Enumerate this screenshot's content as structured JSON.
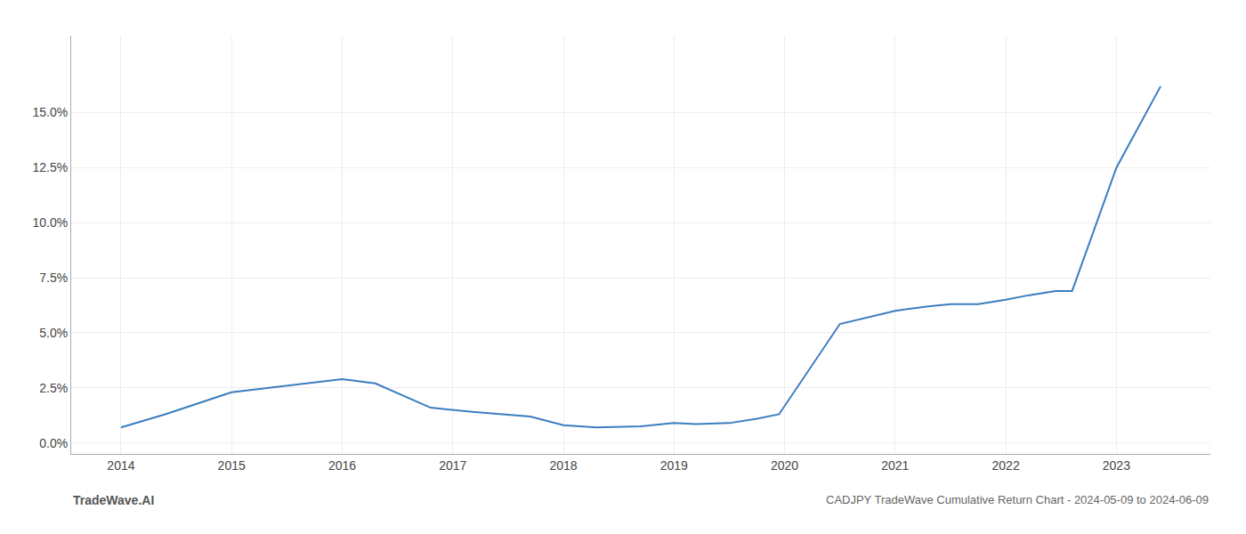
{
  "chart_data": {
    "type": "line",
    "title": "CADJPY TradeWave Cumulative Return Chart - 2024-05-09 to 2024-06-09",
    "annotations": [
      "TradeWave.AI"
    ],
    "color": "#3a7ebf",
    "x": [
      2014.0,
      2014.4,
      2015.0,
      2015.5,
      2016.0,
      2016.3,
      2016.8,
      2017.2,
      2017.7,
      2018.0,
      2018.3,
      2018.7,
      2019.0,
      2019.2,
      2019.5,
      2019.75,
      2019.95,
      2020.5,
      2020.75,
      2021.0,
      2021.3,
      2021.5,
      2021.75,
      2022.0,
      2022.2,
      2022.45,
      2022.6,
      2023.0,
      2023.4
    ],
    "values": [
      0.007,
      0.013,
      0.023,
      0.026,
      0.029,
      0.027,
      0.016,
      0.014,
      0.012,
      0.008,
      0.007,
      0.0075,
      0.009,
      0.0085,
      0.009,
      0.011,
      0.013,
      0.054,
      0.057,
      0.06,
      0.062,
      0.063,
      0.063,
      0.065,
      0.067,
      0.069,
      0.069,
      0.125,
      0.162
    ],
    "xlim": [
      2013.55,
      2023.85
    ],
    "xticks": [
      2014,
      2015,
      2016,
      2017,
      2018,
      2019,
      2020,
      2021,
      2022,
      2023
    ],
    "ylim": [
      -0.005,
      0.185
    ],
    "yticks": [
      {
        "value": 0.0,
        "label": "0.0%"
      },
      {
        "value": 0.025,
        "label": "2.5%"
      },
      {
        "value": 0.05,
        "label": "5.0%"
      },
      {
        "value": 0.075,
        "label": "7.5%"
      },
      {
        "value": 0.1,
        "label": "10.0%"
      },
      {
        "value": 0.125,
        "label": "12.5%"
      },
      {
        "value": 0.15,
        "label": "15.0%"
      }
    ],
    "grid": true
  }
}
